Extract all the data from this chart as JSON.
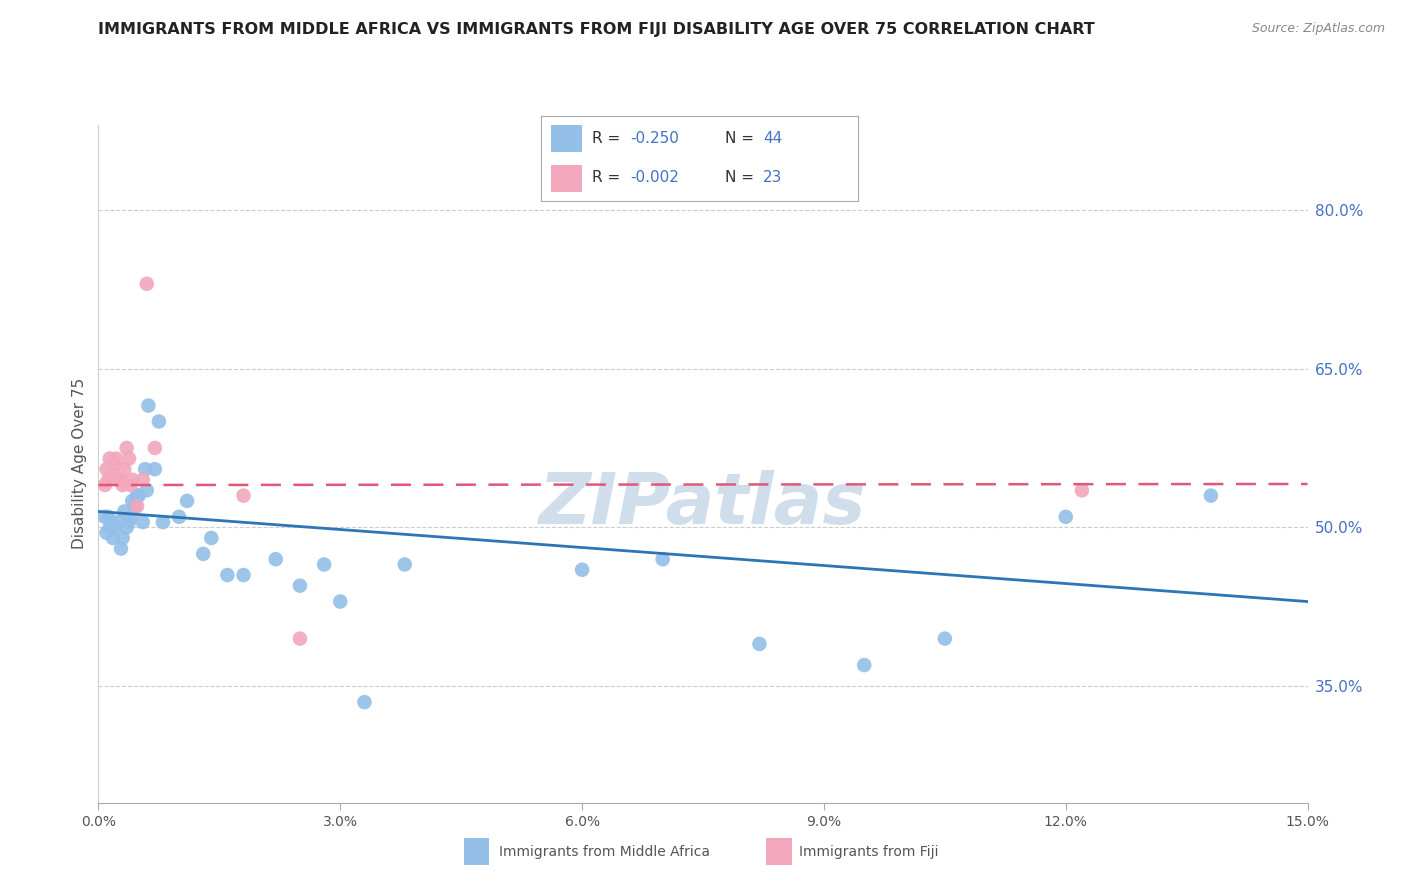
{
  "title": "IMMIGRANTS FROM MIDDLE AFRICA VS IMMIGRANTS FROM FIJI DISABILITY AGE OVER 75 CORRELATION CHART",
  "source": "Source: ZipAtlas.com",
  "ylabel": "Disability Age Over 75",
  "ytick_labels": [
    "35.0%",
    "50.0%",
    "65.0%",
    "80.0%"
  ],
  "ytick_values": [
    0.35,
    0.5,
    0.65,
    0.8
  ],
  "xlim": [
    0.0,
    0.15
  ],
  "ylim": [
    0.24,
    0.88
  ],
  "xticks": [
    0.0,
    0.03,
    0.06,
    0.09,
    0.12,
    0.15
  ],
  "xtick_labels": [
    "0.0%",
    "3.0%",
    "6.0%",
    "9.0%",
    "12.0%",
    "15.0%"
  ],
  "legend_R1": "-0.250",
  "legend_N1": "44",
  "legend_R2": "-0.002",
  "legend_N2": "23",
  "legend_label1": "Immigrants from Middle Africa",
  "legend_label2": "Immigrants from Fiji",
  "color_blue": "#93BFE8",
  "color_pink": "#F2A7BC",
  "trendline_blue_color": "#2E75B6",
  "trendline_pink_color": "#E05878",
  "watermark": "ZIPatlas",
  "watermark_color": "#C8D8E8",
  "blue_x": [
    0.0008,
    0.001,
    0.0012,
    0.0014,
    0.0016,
    0.0018,
    0.002,
    0.0025,
    0.0028,
    0.003,
    0.0032,
    0.0035,
    0.0038,
    0.004,
    0.0042,
    0.0045,
    0.0048,
    0.005,
    0.0055,
    0.0058,
    0.006,
    0.0062,
    0.007,
    0.0075,
    0.008,
    0.01,
    0.011,
    0.013,
    0.014,
    0.016,
    0.018,
    0.022,
    0.025,
    0.028,
    0.03,
    0.033,
    0.038,
    0.06,
    0.07,
    0.082,
    0.095,
    0.105,
    0.12,
    0.138
  ],
  "blue_y": [
    0.51,
    0.495,
    0.51,
    0.5,
    0.505,
    0.49,
    0.5,
    0.505,
    0.48,
    0.49,
    0.515,
    0.5,
    0.505,
    0.51,
    0.525,
    0.52,
    0.53,
    0.53,
    0.505,
    0.555,
    0.535,
    0.615,
    0.555,
    0.6,
    0.505,
    0.51,
    0.525,
    0.475,
    0.49,
    0.455,
    0.455,
    0.47,
    0.445,
    0.465,
    0.43,
    0.335,
    0.465,
    0.46,
    0.47,
    0.39,
    0.37,
    0.395,
    0.51,
    0.53
  ],
  "pink_x": [
    0.0008,
    0.001,
    0.0012,
    0.0014,
    0.0016,
    0.0018,
    0.002,
    0.0022,
    0.0025,
    0.0028,
    0.003,
    0.0032,
    0.0035,
    0.0038,
    0.004,
    0.0042,
    0.0048,
    0.0055,
    0.006,
    0.007,
    0.018,
    0.025,
    0.122
  ],
  "pink_y": [
    0.54,
    0.555,
    0.545,
    0.565,
    0.55,
    0.55,
    0.56,
    0.565,
    0.545,
    0.545,
    0.54,
    0.555,
    0.575,
    0.565,
    0.54,
    0.545,
    0.52,
    0.545,
    0.73,
    0.575,
    0.53,
    0.395,
    0.535
  ],
  "blue_trend_x0": 0.0,
  "blue_trend_x1": 0.15,
  "blue_trend_y0": 0.515,
  "blue_trend_y1": 0.43,
  "pink_trend_x0": 0.0,
  "pink_trend_x1": 0.15,
  "pink_trend_y0": 0.54,
  "pink_trend_y1": 0.541
}
